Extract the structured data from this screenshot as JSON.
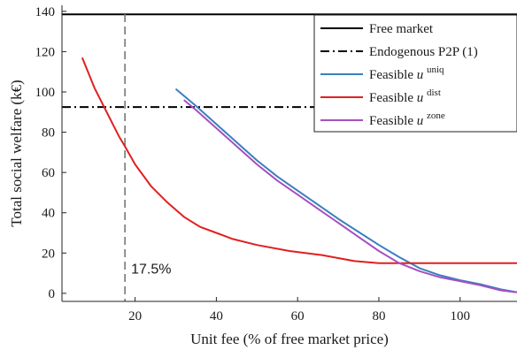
{
  "chart_data": {
    "type": "line",
    "xlabel": "Unit fee (% of free market price)",
    "ylabel": "Total social welfare (k€)",
    "xlim": [
      2,
      114
    ],
    "ylim": [
      -4,
      143
    ],
    "x_ticks": [
      20,
      40,
      60,
      80,
      100
    ],
    "y_ticks": [
      0,
      20,
      40,
      60,
      80,
      100,
      120,
      140
    ],
    "grid": false,
    "legend_position": "top-right",
    "reference_lines": [
      {
        "name": "Free market",
        "orientation": "horizontal",
        "value": 138.5,
        "style": "solid",
        "color": "#000000"
      },
      {
        "name": "Endogenous P2P (1)",
        "orientation": "horizontal",
        "value": 92.5,
        "style": "dashdot",
        "color": "#000000"
      },
      {
        "orientation": "vertical",
        "value": 17.5,
        "style": "dashed",
        "color": "#777777",
        "annotation": "17.5%"
      }
    ],
    "series": [
      {
        "legend_base": "Feasible ",
        "legend_var": "u",
        "legend_sup": "uniq",
        "color": "#3a7fbf",
        "x": [
          30,
          35,
          40,
          45,
          50,
          55,
          60,
          65,
          70,
          75,
          80,
          85,
          90,
          95,
          100,
          105,
          110,
          114
        ],
        "y": [
          101.5,
          93,
          84,
          75,
          66,
          58,
          51,
          44,
          37,
          30.5,
          24,
          18,
          12.5,
          9,
          6.5,
          4.5,
          2,
          0.5
        ]
      },
      {
        "legend_base": "Feasible ",
        "legend_var": "u",
        "legend_sup": "dist",
        "color": "#e02020",
        "x": [
          7,
          10,
          13,
          16,
          17.5,
          20,
          24,
          28,
          32,
          36,
          40,
          44,
          50,
          58,
          66,
          74,
          80,
          90,
          100,
          110,
          114
        ],
        "y": [
          117,
          102,
          90,
          78,
          73,
          64,
          53,
          45,
          38,
          33,
          30,
          27,
          24,
          21,
          19,
          16,
          15,
          15,
          15,
          15,
          15
        ]
      },
      {
        "legend_base": "Feasible ",
        "legend_var": "u",
        "legend_sup": "zone",
        "color": "#a64fc0",
        "x": [
          32,
          35,
          40,
          45,
          50,
          55,
          60,
          65,
          70,
          75,
          80,
          85,
          90,
          95,
          100,
          105,
          110,
          114
        ],
        "y": [
          96,
          91,
          82,
          73,
          64,
          56,
          49,
          42,
          35,
          28,
          21,
          15,
          11,
          8,
          6,
          4,
          1.5,
          0.5
        ]
      }
    ]
  }
}
